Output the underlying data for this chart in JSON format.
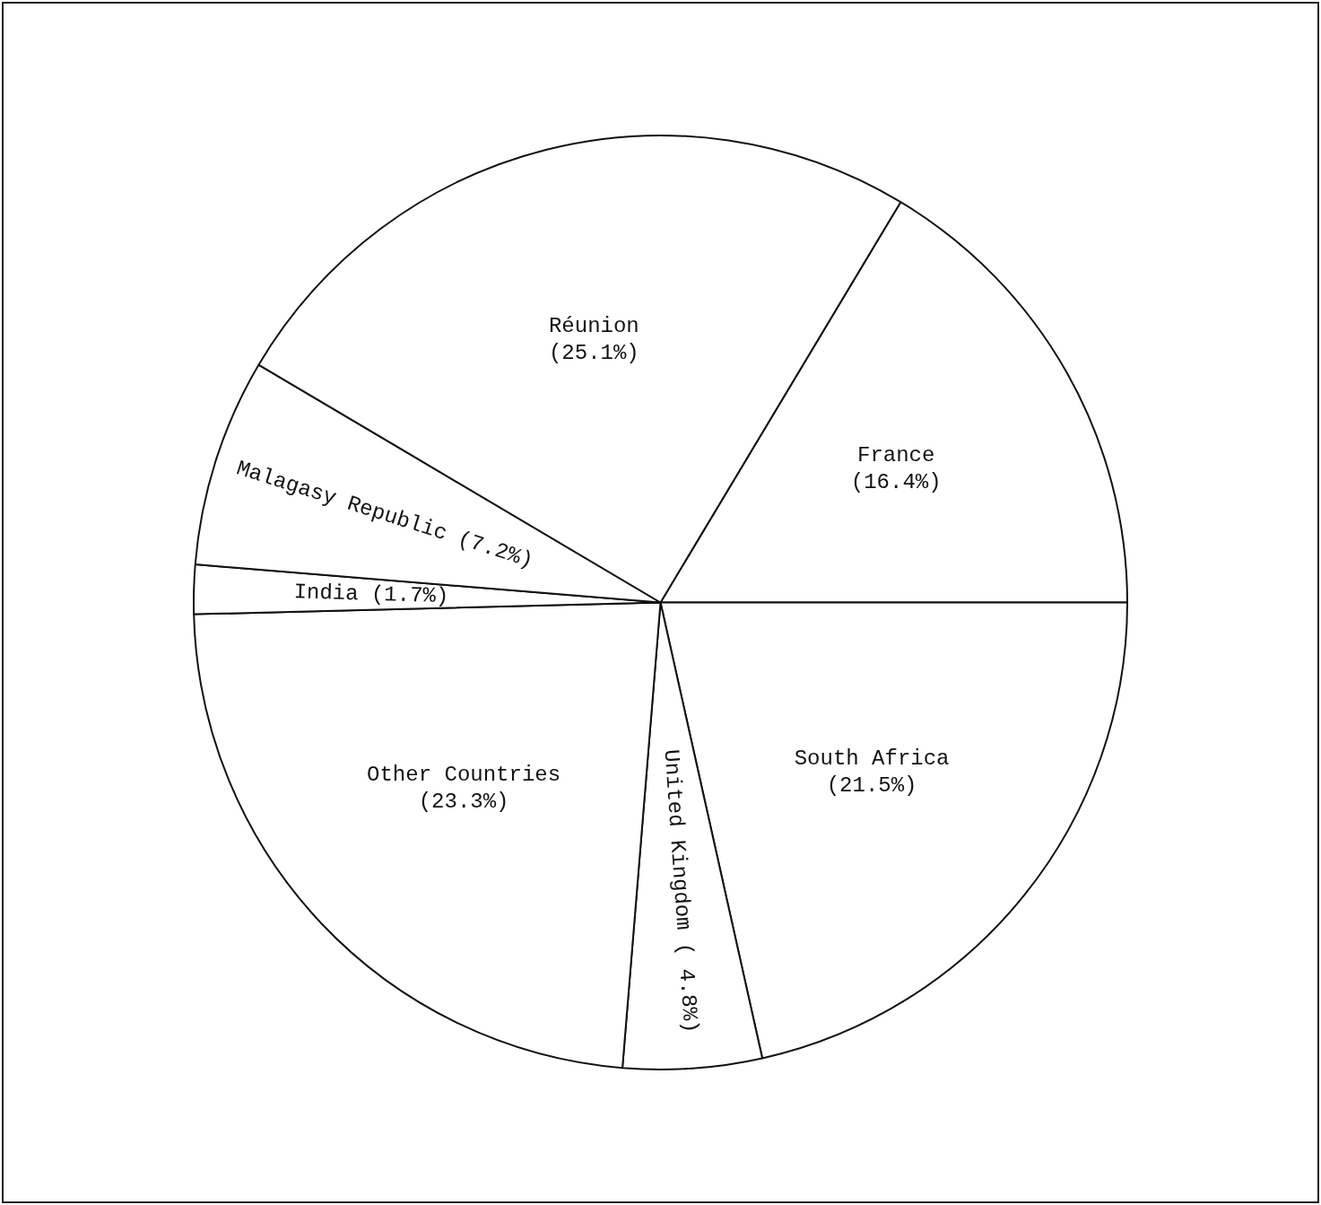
{
  "chart_data": {
    "type": "pie",
    "categories": [
      "France",
      "South Africa",
      "United Kingdom",
      "Other Countries",
      "India",
      "Malagasy Republic",
      "Réunion"
    ],
    "values": [
      16.4,
      21.5,
      4.8,
      23.3,
      1.7,
      7.2,
      25.1
    ],
    "colors": [
      "#ffffff",
      "#ffffff",
      "#ffffff",
      "#ffffff",
      "#ffffff",
      "#ffffff",
      "#ffffff"
    ],
    "value_labels": [
      "(16.4%)",
      "(21.5%)",
      "( 4.8%)",
      "(23.3%)",
      "(1.7%)",
      "(7.2%)",
      "(25.1%)"
    ],
    "legend": false
  }
}
